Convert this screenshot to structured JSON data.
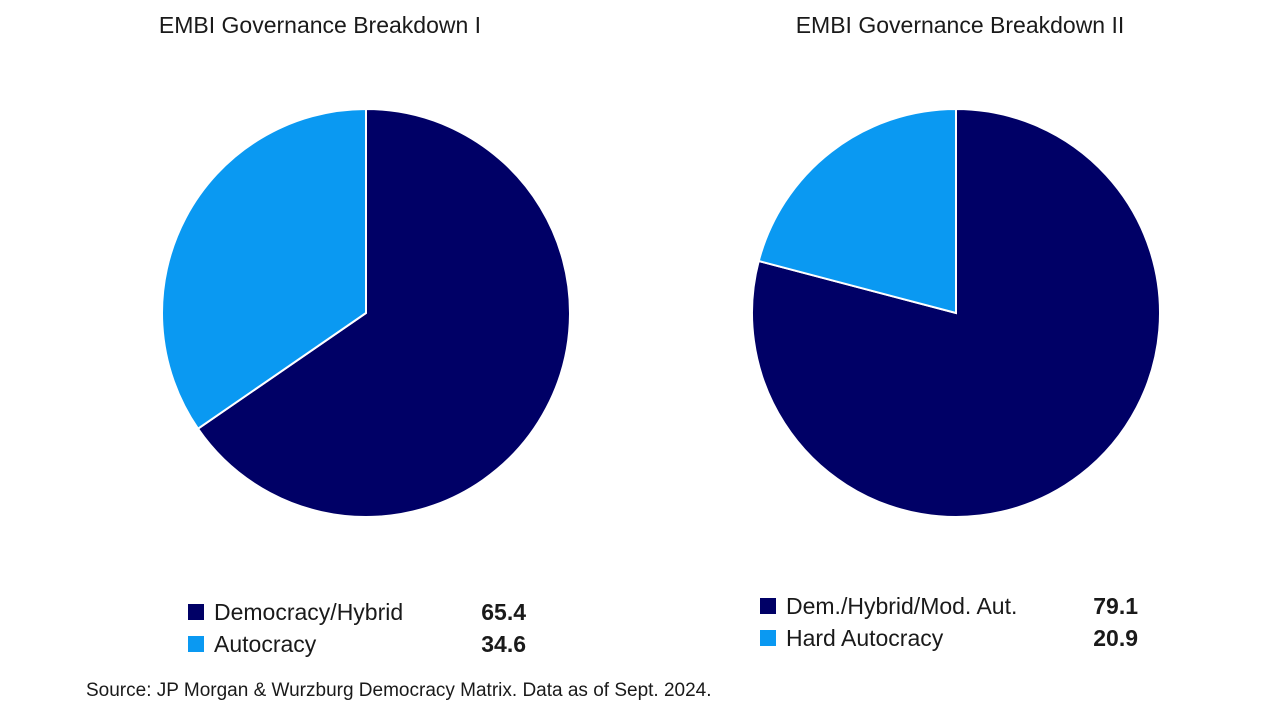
{
  "charts": [
    {
      "title": "EMBI Governance Breakdown I",
      "legend": [
        {
          "label": "Democracy/Hybrid",
          "value": "65.4",
          "color": "#000066"
        },
        {
          "label": "Autocracy",
          "value": "34.6",
          "color": "#0a99f2"
        }
      ]
    },
    {
      "title": "EMBI Governance Breakdown II",
      "legend": [
        {
          "label": "Dem./Hybrid/Mod. Aut.",
          "value": "79.1",
          "color": "#000066"
        },
        {
          "label": "Hard Autocracy",
          "value": "20.9",
          "color": "#0a99f2"
        }
      ]
    }
  ],
  "source": "Source: JP Morgan & Wurzburg Democracy Matrix. Data as of Sept. 2024.",
  "chart_data": [
    {
      "type": "pie",
      "title": "EMBI Governance Breakdown I",
      "categories": [
        "Democracy/Hybrid",
        "Autocracy"
      ],
      "values": [
        65.4,
        34.6
      ],
      "colors": [
        "#000066",
        "#0a99f2"
      ],
      "legend": "bottom"
    },
    {
      "type": "pie",
      "title": "EMBI Governance Breakdown II",
      "categories": [
        "Dem./Hybrid/Mod. Aut.",
        "Hard Autocracy"
      ],
      "values": [
        79.1,
        20.9
      ],
      "colors": [
        "#000066",
        "#0a99f2"
      ],
      "legend": "bottom"
    }
  ]
}
